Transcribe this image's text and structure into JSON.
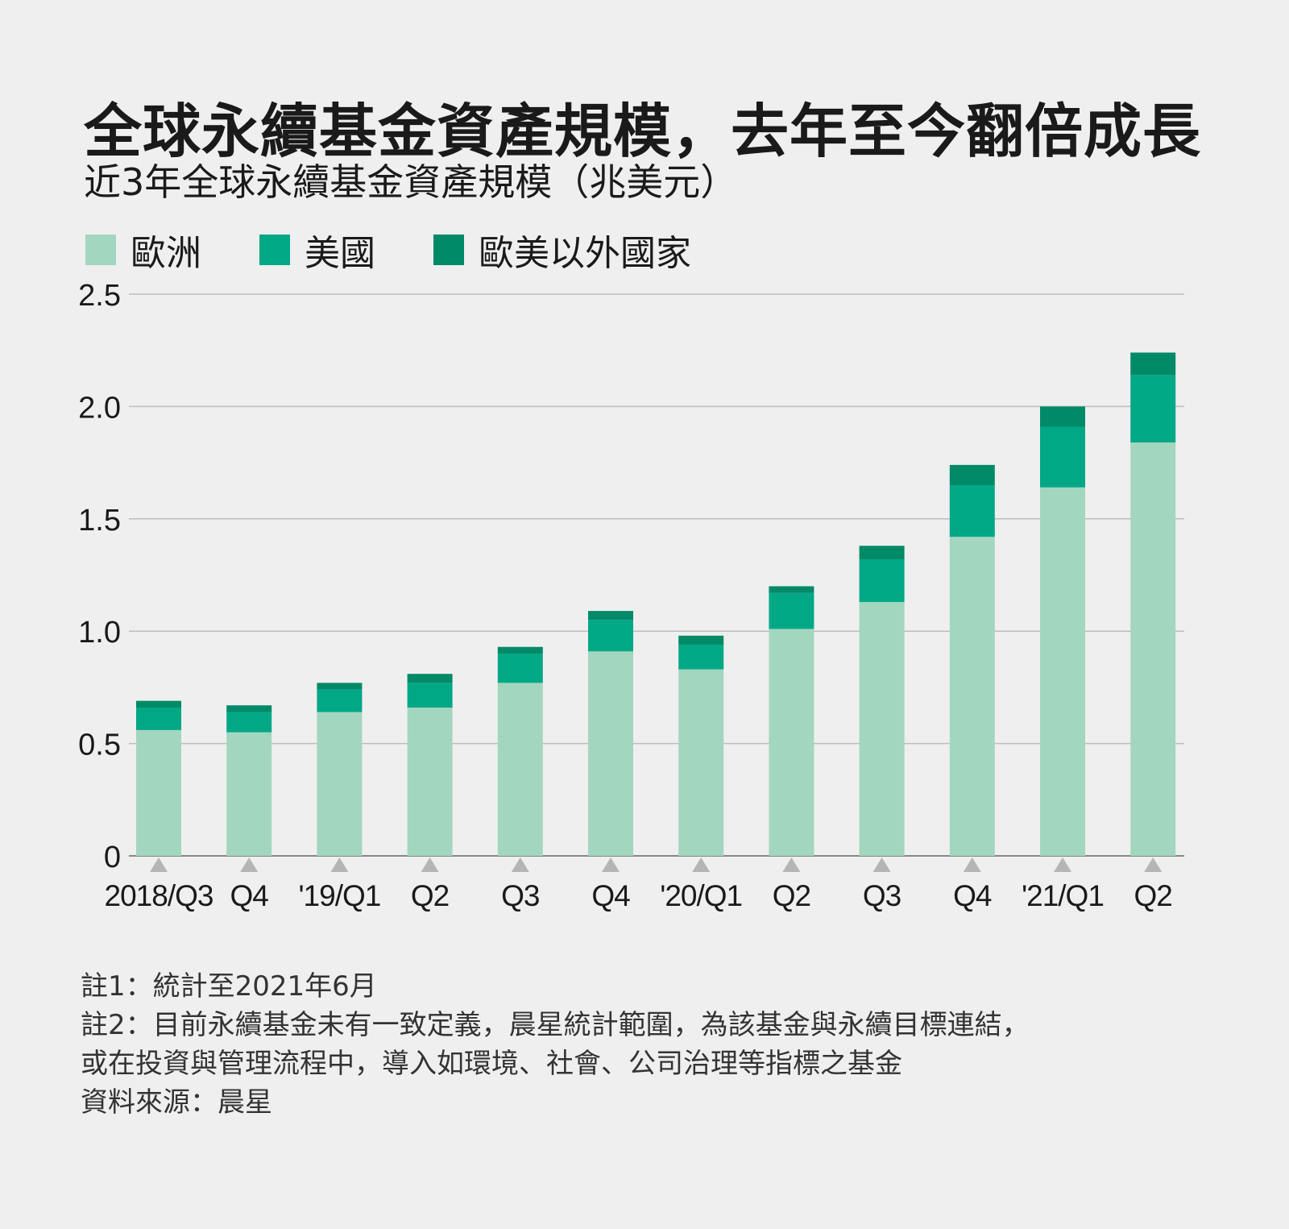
{
  "chart_data": {
    "type": "bar",
    "stacked": true,
    "title": "全球永續基金資產規模，去年至今翻倍成長",
    "subtitle": "近3年全球永續基金資產規模（兆美元）",
    "xlabel": "",
    "ylabel": "",
    "ylim": [
      0,
      2.5
    ],
    "yticks": [
      0,
      0.5,
      1.0,
      1.5,
      2.0,
      2.5
    ],
    "ytick_labels": [
      "0",
      "0.5",
      "1.0",
      "1.5",
      "2.0",
      "2.5"
    ],
    "grid": true,
    "legend_position": "top-left",
    "categories": [
      "2018/Q3",
      "Q4",
      "'19/Q1",
      "Q2",
      "Q3",
      "Q4",
      "'20/Q1",
      "Q2",
      "Q3",
      "Q4",
      "'21/Q1",
      "Q2"
    ],
    "series": [
      {
        "name": "歐洲",
        "color": "#a3d6bf",
        "values": [
          0.56,
          0.55,
          0.64,
          0.66,
          0.77,
          0.91,
          0.83,
          1.01,
          1.13,
          1.42,
          1.64,
          1.84
        ]
      },
      {
        "name": "美國",
        "color": "#00a886",
        "values": [
          0.1,
          0.09,
          0.1,
          0.11,
          0.13,
          0.14,
          0.11,
          0.16,
          0.19,
          0.23,
          0.27,
          0.3
        ]
      },
      {
        "name": "歐美以外國家",
        "color": "#008a68",
        "values": [
          0.03,
          0.03,
          0.03,
          0.04,
          0.03,
          0.04,
          0.04,
          0.03,
          0.06,
          0.09,
          0.09,
          0.1
        ]
      }
    ]
  },
  "notes": [
    "註1：統計至2021年6月",
    "註2：目前永續基金未有一致定義，晨星統計範圍，為該基金與永續目標連結，",
    "或在投資與管理流程中，導入如環境、社會、公司治理等指標之基金",
    "資料來源：晨星"
  ],
  "colors": {
    "background": "#efefef",
    "grid": "#bdbdbd",
    "tick_marker": "#b5b5b5"
  }
}
